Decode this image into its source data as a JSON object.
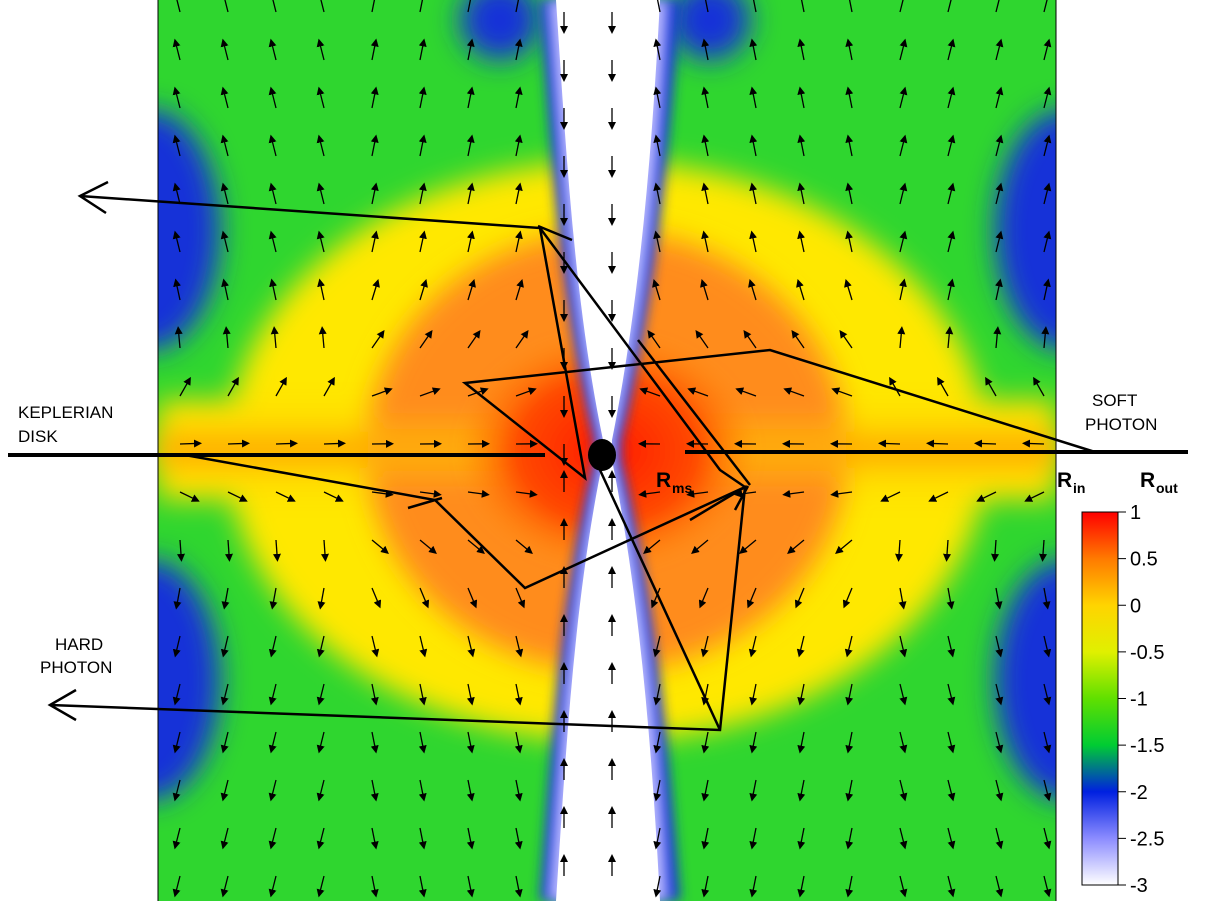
{
  "labels": {
    "keplerian_line1": "KEPLERIAN",
    "keplerian_line2": "DISK",
    "soft_line1": "SOFT",
    "soft_line2": "PHOTON",
    "hard_line1": "HARD",
    "hard_line2": "PHOTON",
    "r_ms_main": "R",
    "r_ms_sub": "ms",
    "r_in_main": "R",
    "r_in_sub": "in",
    "r_out_main": "R",
    "r_out_sub": "out"
  },
  "colorbar": {
    "ticks": [
      "1",
      "0.5",
      "0",
      "-0.5",
      "-1",
      "-1.5",
      "-2",
      "-2.5",
      "-3"
    ],
    "stops": [
      "#ff0000",
      "#ff7a00",
      "#ffd400",
      "#e0f000",
      "#60e000",
      "#00cc33",
      "#0020e0",
      "#8c8cff",
      "#ffffff"
    ]
  },
  "colors": {
    "red": "#ff2a00",
    "orange": "#ff7f1a",
    "yellow": "#ffe800",
    "green": "#2fd62f",
    "blue": "#1530d8",
    "light_blue": "#b8b8ff",
    "white": "#ffffff",
    "black": "#000000"
  }
}
